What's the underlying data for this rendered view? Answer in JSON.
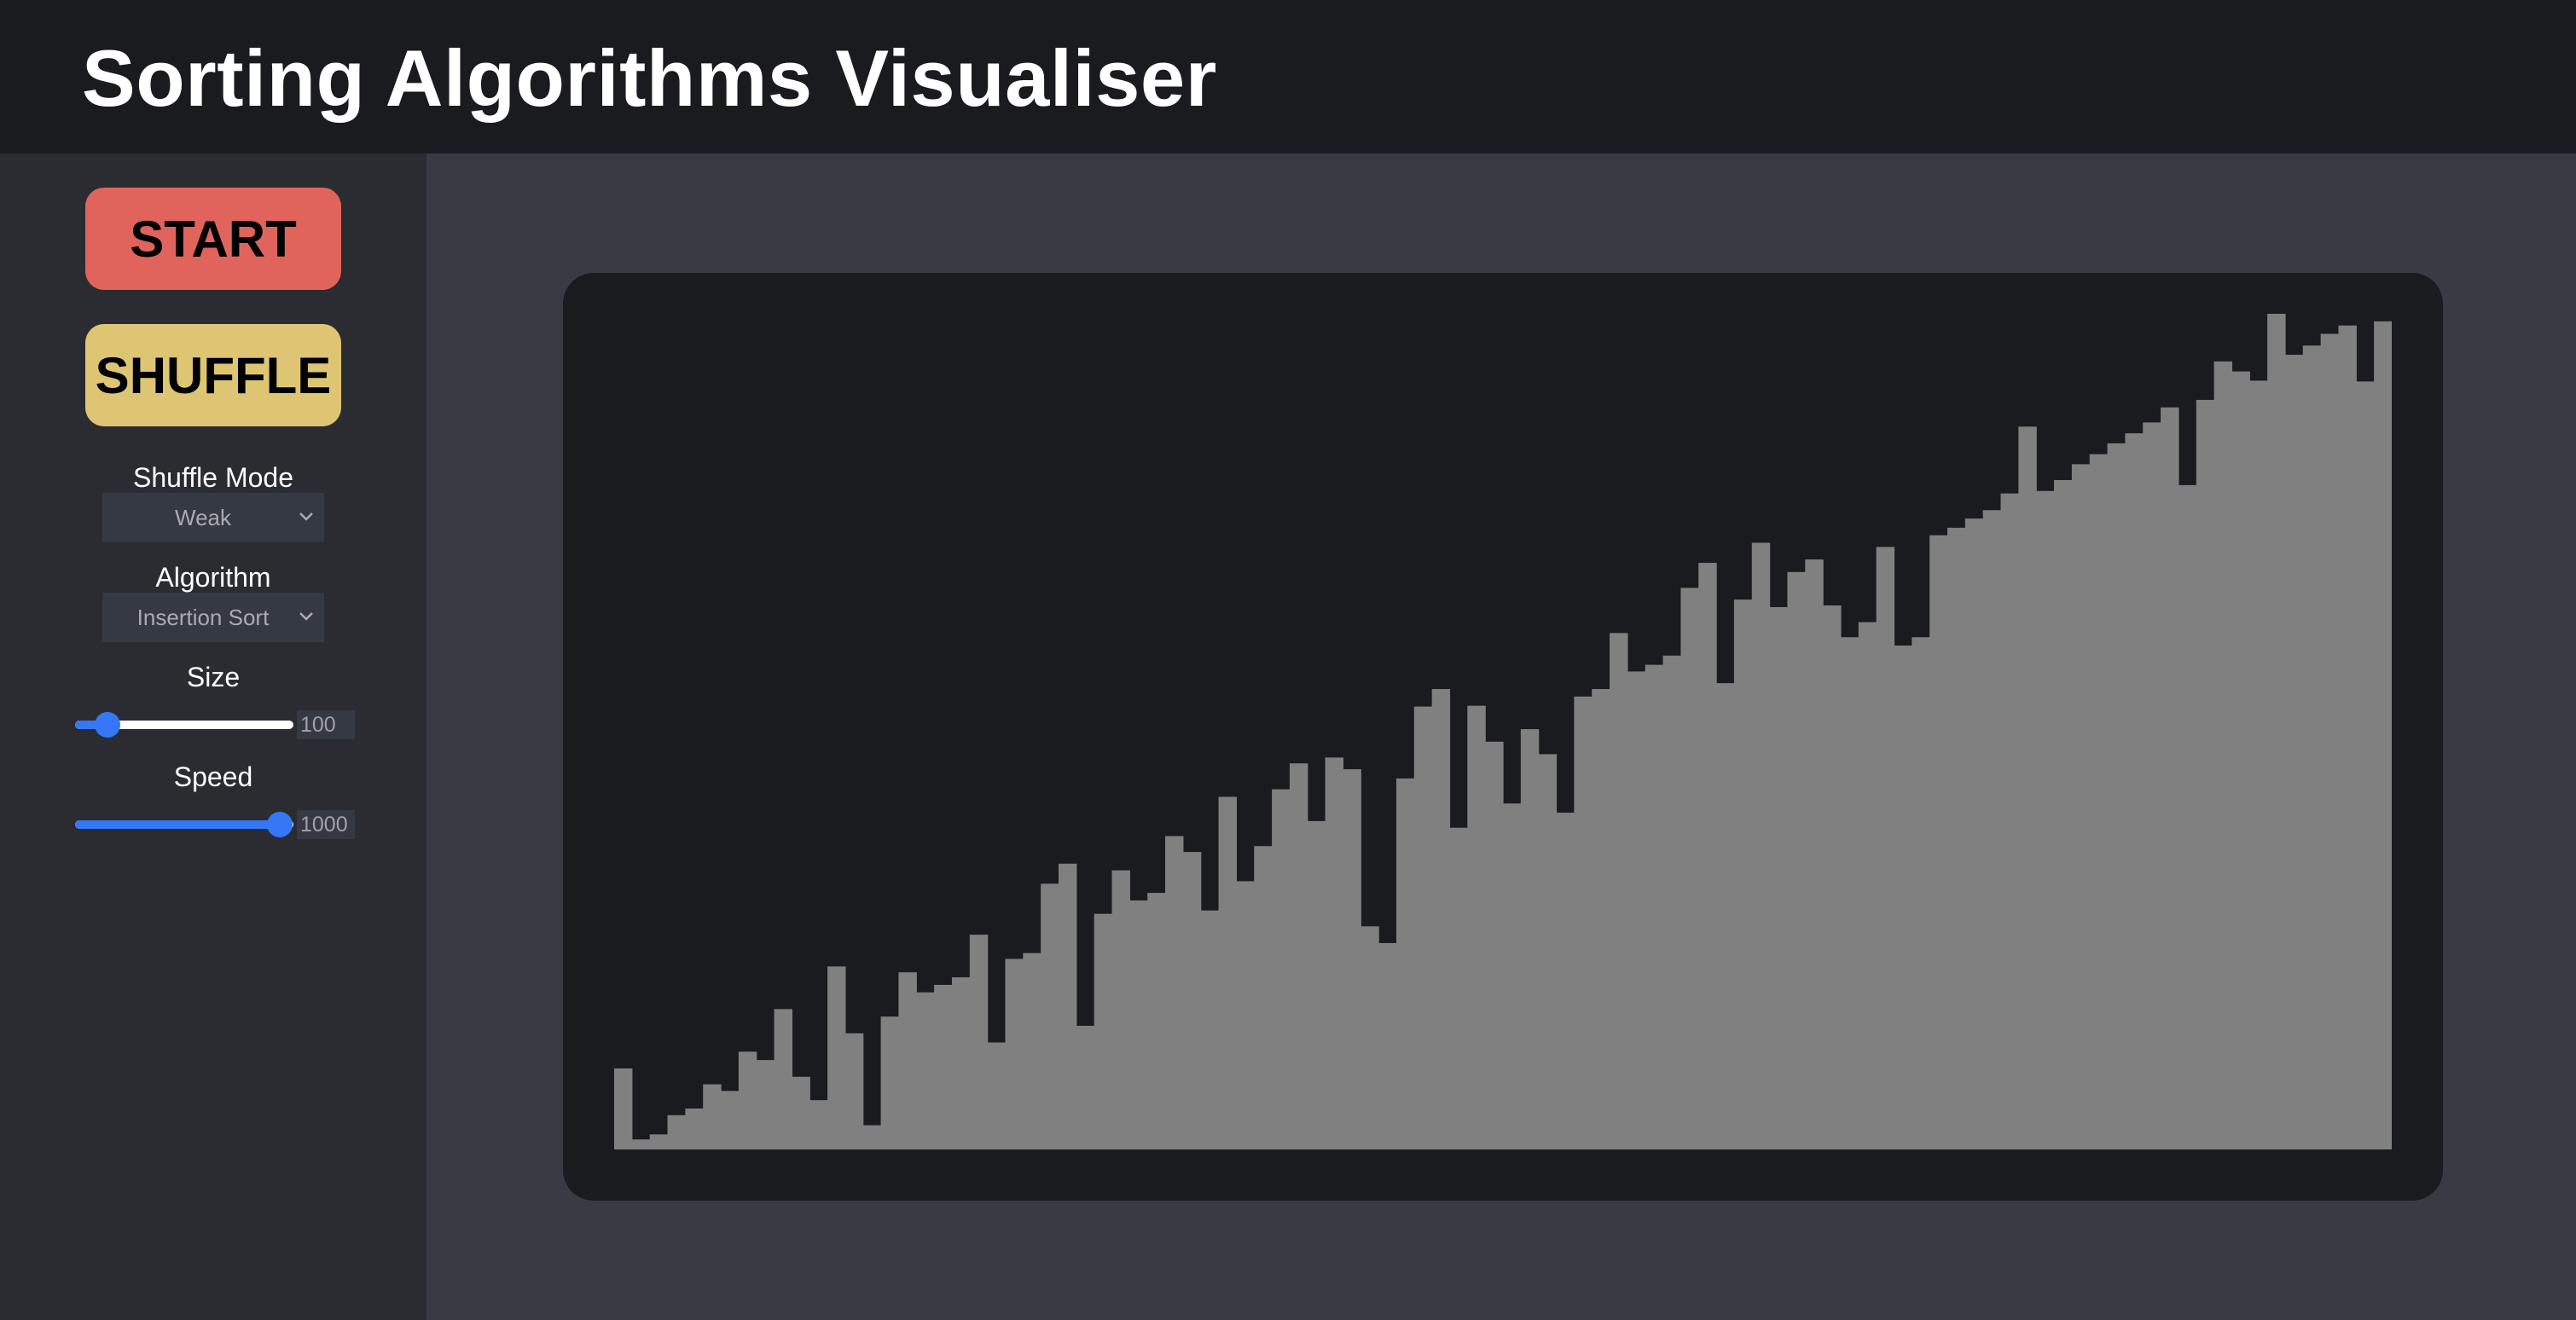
{
  "header": {
    "title": "Sorting Algorithms Visualiser"
  },
  "controls": {
    "start_label": "START",
    "shuffle_label": "SHUFFLE",
    "start_color": "#e0645b",
    "shuffle_color": "#dec574",
    "shuffle_mode": {
      "label": "Shuffle Mode",
      "value": "Weak"
    },
    "algorithm": {
      "label": "Algorithm",
      "value": "Insertion Sort"
    },
    "size": {
      "label": "Size",
      "value": "100",
      "min": 0,
      "max": 1000,
      "current": 100
    },
    "speed": {
      "label": "Speed",
      "value": "1000",
      "min": 0,
      "max": 1000,
      "current": 1000
    }
  },
  "chart_data": {
    "type": "bar",
    "bar_color": "#808080",
    "ylim": [
      0,
      1000
    ],
    "values": [
      97,
      12,
      18,
      41,
      49,
      78,
      70,
      117,
      107,
      168,
      87,
      59,
      219,
      139,
      29,
      159,
      212,
      188,
      197,
      206,
      257,
      128,
      228,
      235,
      318,
      342,
      148,
      282,
      334,
      298,
      307,
      375,
      356,
      286,
      422,
      321,
      363,
      431,
      462,
      393,
      469,
      455,
      267,
      247,
      444,
      530,
      551,
      385,
      531,
      488,
      414,
      503,
      473,
      403,
      542,
      551,
      618,
      572,
      580,
      591,
      672,
      702,
      558,
      658,
      726,
      649,
      691,
      706,
      651,
      613,
      631,
      721,
      603,
      613,
      735,
      744,
      755,
      765,
      785,
      865,
      788,
      801,
      820,
      832,
      845,
      857,
      870,
      888,
      795,
      897,
      943,
      931,
      920,
      1000,
      951,
      962,
      976,
      986,
      919,
      991
    ]
  }
}
